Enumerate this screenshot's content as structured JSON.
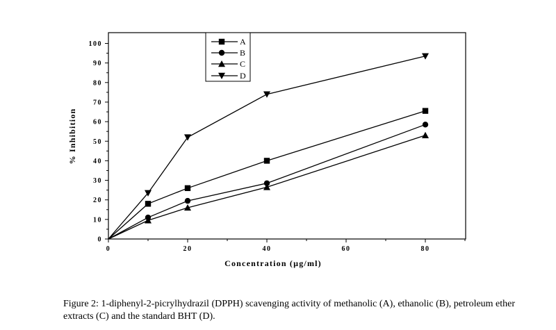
{
  "chart_data": {
    "type": "line",
    "title": "",
    "xlabel": "Concentration (µg/ml)",
    "ylabel": "% Inhibition",
    "xlim": [
      0,
      90
    ],
    "ylim": [
      0,
      105
    ],
    "x_ticks": [
      0,
      20,
      40,
      60,
      80
    ],
    "y_ticks": [
      0,
      10,
      20,
      30,
      40,
      50,
      60,
      70,
      80,
      90,
      100
    ],
    "grid": false,
    "legend_position": "top-left-inside",
    "series": [
      {
        "name": "A",
        "marker": "square",
        "x": [
          0,
          10,
          20,
          40,
          80
        ],
        "y": [
          0,
          18,
          26,
          40,
          65.5
        ]
      },
      {
        "name": "B",
        "marker": "circle",
        "x": [
          0,
          10,
          20,
          40,
          80
        ],
        "y": [
          0,
          11,
          19.5,
          28.5,
          58.5
        ]
      },
      {
        "name": "C",
        "marker": "triangle-up",
        "x": [
          0,
          10,
          20,
          40,
          80
        ],
        "y": [
          0,
          9.5,
          16,
          26.5,
          53
        ]
      },
      {
        "name": "D",
        "marker": "triangle-down",
        "x": [
          0,
          10,
          20,
          40,
          80
        ],
        "y": [
          0,
          23.5,
          52,
          74,
          93.5
        ]
      }
    ]
  },
  "caption": "Figure 2: 1-diphenyl-2-picrylhydrazil (DPPH) scavenging activity of methanolic (A), ethanolic (B), petroleum ether extracts (C)  and the standard BHT (D)."
}
